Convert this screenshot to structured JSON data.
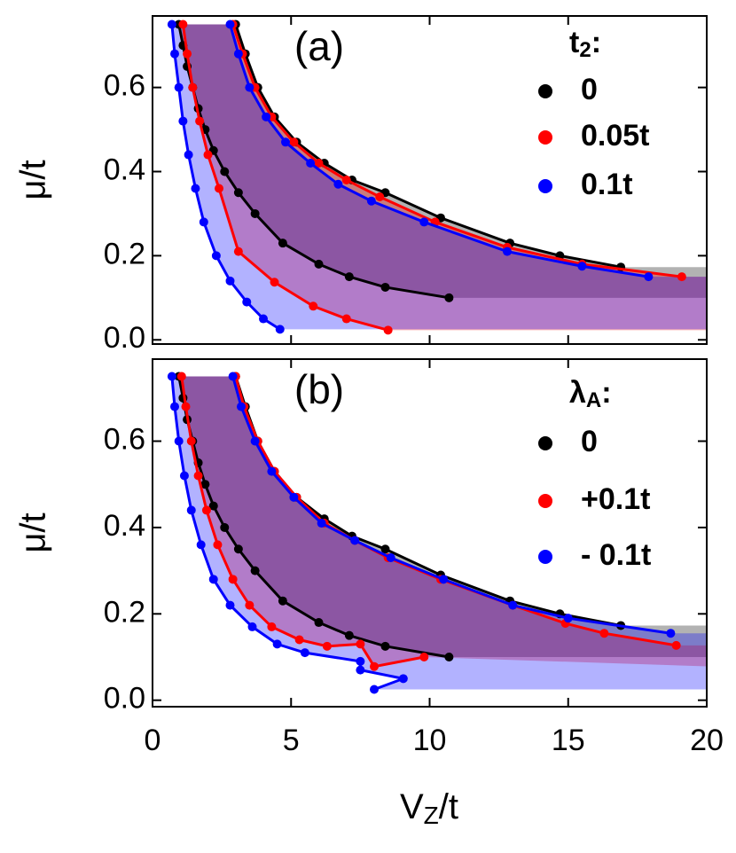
{
  "chart_data": [
    {
      "type": "line",
      "panel_label": "(a)",
      "legend_title": {
        "main": "t",
        "sub": "2",
        "suffix": ":"
      },
      "y_label": "μ/t",
      "xlim": [
        0,
        20
      ],
      "ylim": [
        -0.01,
        0.77
      ],
      "yticks": [
        {
          "value": 0,
          "label": "0.0"
        },
        0.2,
        0.4,
        0.6
      ],
      "series": [
        {
          "name": "0",
          "color": "#000000",
          "lower": {
            "x": [
              0.95,
              1.1,
              1.25,
              1.45,
              1.65,
              1.9,
              2.2,
              2.6,
              3.1,
              3.7,
              4.7,
              6.0,
              7.1,
              8.4,
              10.7
            ],
            "y": [
              0.75,
              0.7,
              0.65,
              0.6,
              0.55,
              0.5,
              0.45,
              0.4,
              0.35,
              0.3,
              0.23,
              0.18,
              0.15,
              0.125,
              0.1
            ]
          },
          "upper": {
            "x": [
              3.0,
              3.35,
              3.8,
              4.4,
              5.2,
              6.2,
              7.2,
              8.4,
              10.4,
              12.9,
              14.7,
              16.9
            ],
            "y": [
              0.75,
              0.68,
              0.6,
              0.53,
              0.47,
              0.42,
              0.38,
              0.35,
              0.29,
              0.23,
              0.2,
              0.173
            ]
          }
        },
        {
          "name": "0.05t",
          "color": "#ff0000",
          "lower": {
            "x": [
              1.1,
              1.25,
              1.45,
              1.7,
              2.0,
              2.4,
              3.1,
              4.4,
              5.8,
              7.0,
              8.5
            ],
            "y": [
              0.75,
              0.68,
              0.6,
              0.52,
              0.44,
              0.36,
              0.21,
              0.137,
              0.08,
              0.05,
              0.023
            ]
          },
          "upper": {
            "x": [
              2.9,
              3.25,
              3.7,
              4.3,
              5.1,
              6.0,
              7.0,
              8.2,
              10.2,
              12.8,
              15.5,
              19.1
            ],
            "y": [
              0.75,
              0.68,
              0.6,
              0.53,
              0.47,
              0.42,
              0.38,
              0.34,
              0.28,
              0.22,
              0.18,
              0.15
            ]
          }
        },
        {
          "name": "0.1t",
          "color": "#0000ff",
          "lower": {
            "x": [
              0.7,
              0.8,
              0.95,
              1.1,
              1.3,
              1.55,
              1.85,
              2.3,
              2.8,
              3.4,
              4.0,
              4.6
            ],
            "y": [
              0.75,
              0.68,
              0.6,
              0.52,
              0.44,
              0.36,
              0.28,
              0.2,
              0.14,
              0.09,
              0.05,
              0.025
            ]
          },
          "upper": {
            "x": [
              2.8,
              3.1,
              3.5,
              4.1,
              4.8,
              5.7,
              6.7,
              7.9,
              9.8,
              12.8,
              15.5,
              17.9
            ],
            "y": [
              0.75,
              0.68,
              0.6,
              0.53,
              0.47,
              0.42,
              0.37,
              0.33,
              0.28,
              0.21,
              0.175,
              0.15
            ]
          }
        }
      ]
    },
    {
      "type": "line",
      "panel_label": "(b)",
      "legend_title": {
        "main": "λ",
        "sub": "A",
        "suffix": ":"
      },
      "y_label": "μ/t",
      "x_label": {
        "main": "V",
        "sub": "Z",
        "suffix": "/t"
      },
      "xlim": [
        0,
        20
      ],
      "xticks": [
        0,
        5,
        10,
        15,
        20
      ],
      "ylim": [
        -0.015,
        0.79
      ],
      "yticks": [
        {
          "value": 0,
          "label": "0.0"
        },
        0.2,
        0.4,
        0.6
      ],
      "series": [
        {
          "name": "0",
          "color": "#000000",
          "lower": {
            "x": [
              0.95,
              1.1,
              1.25,
              1.45,
              1.65,
              1.9,
              2.2,
              2.6,
              3.1,
              3.7,
              4.7,
              6.0,
              7.1,
              8.4,
              10.7
            ],
            "y": [
              0.75,
              0.7,
              0.65,
              0.6,
              0.55,
              0.5,
              0.45,
              0.4,
              0.35,
              0.3,
              0.23,
              0.18,
              0.15,
              0.125,
              0.1
            ]
          },
          "upper": {
            "x": [
              3.0,
              3.35,
              3.8,
              4.4,
              5.2,
              6.2,
              7.2,
              8.4,
              10.4,
              12.9,
              14.7,
              16.9
            ],
            "y": [
              0.75,
              0.68,
              0.6,
              0.53,
              0.47,
              0.42,
              0.38,
              0.35,
              0.29,
              0.23,
              0.2,
              0.173
            ]
          }
        },
        {
          "name": "+0.1t",
          "color": "#ff0000",
          "lower": {
            "x": [
              1.05,
              1.2,
              1.4,
              1.65,
              1.95,
              2.35,
              2.9,
              3.5,
              4.3,
              5.3,
              6.3,
              7.5,
              8.0,
              9.8
            ],
            "y": [
              0.75,
              0.68,
              0.6,
              0.52,
              0.44,
              0.36,
              0.28,
              0.22,
              0.17,
              0.14,
              0.125,
              0.13,
              0.078,
              0.1
            ]
          },
          "upper": {
            "x": [
              3.0,
              3.3,
              3.8,
              4.4,
              5.2,
              6.2,
              7.3,
              8.5,
              10.4,
              13.0,
              14.9,
              16.3,
              18.9
            ],
            "y": [
              0.75,
              0.68,
              0.6,
              0.53,
              0.47,
              0.41,
              0.37,
              0.33,
              0.28,
              0.22,
              0.178,
              0.155,
              0.127
            ]
          }
        },
        {
          "name": "- 0.1t",
          "color": "#0000ff",
          "lower": {
            "x": [
              0.7,
              0.8,
              0.95,
              1.15,
              1.4,
              1.75,
              2.2,
              2.8,
              3.6,
              4.5,
              5.5,
              7.5,
              7.5,
              9.05,
              8.0
            ],
            "y": [
              0.75,
              0.68,
              0.6,
              0.52,
              0.44,
              0.36,
              0.28,
              0.22,
              0.17,
              0.13,
              0.11,
              0.09,
              0.07,
              0.05,
              0.025
            ]
          },
          "upper": {
            "x": [
              2.9,
              3.2,
              3.7,
              4.3,
              5.1,
              6.1,
              7.3,
              8.6,
              10.5,
              13.0,
              15.0,
              18.7
            ],
            "y": [
              0.75,
              0.68,
              0.6,
              0.53,
              0.47,
              0.41,
              0.37,
              0.33,
              0.28,
              0.22,
              0.19,
              0.155
            ]
          }
        }
      ]
    }
  ]
}
